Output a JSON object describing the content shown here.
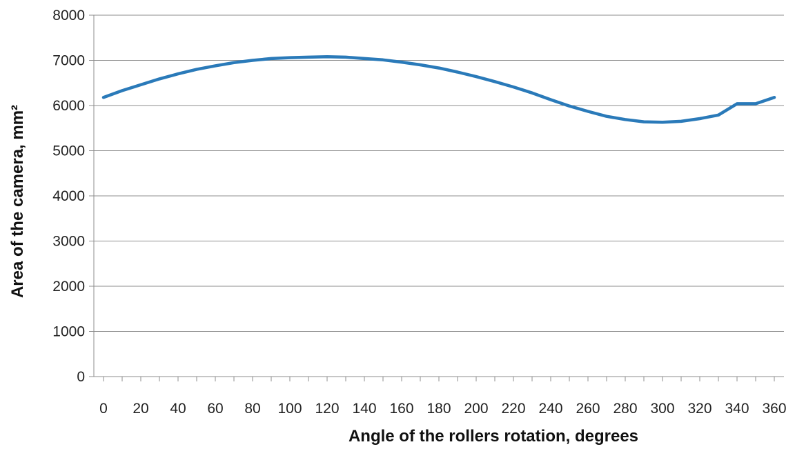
{
  "chart_data": {
    "type": "line",
    "title": "",
    "xlabel": "Angle of the rollers rotation, degrees",
    "ylabel": "Area of the camera, mm²",
    "xlim": [
      0,
      360
    ],
    "ylim": [
      0,
      8000
    ],
    "x_ticks": [
      0,
      20,
      40,
      60,
      80,
      100,
      120,
      140,
      160,
      180,
      200,
      220,
      240,
      260,
      280,
      300,
      320,
      340,
      360
    ],
    "y_ticks": [
      0,
      1000,
      2000,
      3000,
      4000,
      5000,
      6000,
      7000,
      8000
    ],
    "x_tick_labels": [
      "0",
      "20",
      "40",
      "60",
      "80",
      "100",
      "120",
      "140",
      "160",
      "180",
      "200",
      "220",
      "240",
      "260",
      "280",
      "300",
      "320",
      "340",
      "360"
    ],
    "y_tick_labels": [
      "0",
      "1000",
      "2000",
      "3000",
      "4000",
      "5000",
      "6000",
      "7000",
      "8000"
    ],
    "grid": "horizontal",
    "legend": "none",
    "series": [
      {
        "color": "#2a7ab9",
        "x": [
          0,
          10,
          20,
          30,
          40,
          50,
          60,
          70,
          80,
          90,
          100,
          110,
          120,
          130,
          140,
          150,
          160,
          170,
          180,
          190,
          200,
          210,
          220,
          230,
          240,
          250,
          260,
          270,
          280,
          290,
          300,
          310,
          320,
          330,
          340,
          350,
          360
        ],
        "values": [
          6180,
          6330,
          6460,
          6590,
          6700,
          6800,
          6880,
          6950,
          7000,
          7040,
          7060,
          7070,
          7080,
          7070,
          7040,
          7010,
          6960,
          6900,
          6830,
          6740,
          6640,
          6530,
          6410,
          6280,
          6130,
          5990,
          5870,
          5760,
          5690,
          5640,
          5630,
          5650,
          5710,
          5790,
          6040,
          6040,
          6180
        ]
      }
    ]
  }
}
